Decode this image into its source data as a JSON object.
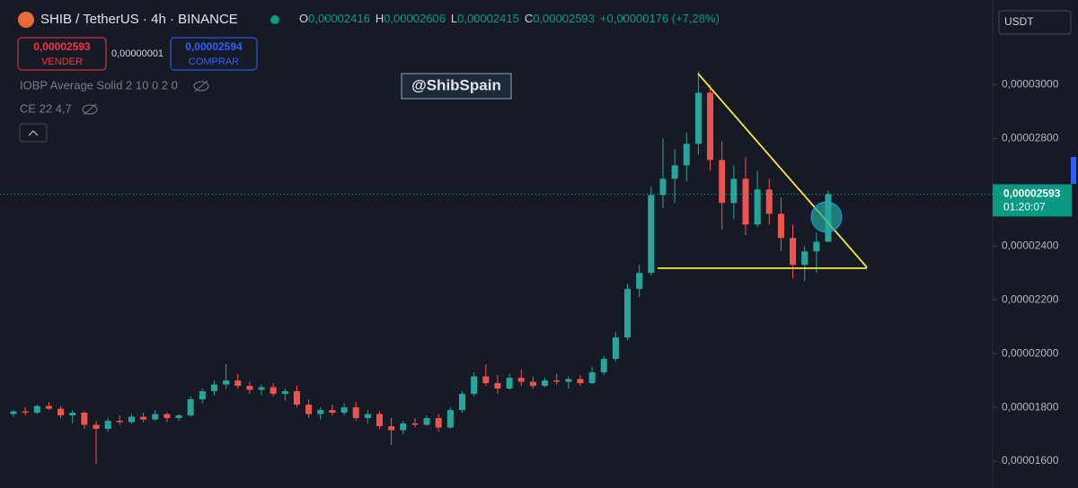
{
  "header": {
    "title": "SHIB / TetherUS · 4h · BINANCE",
    "ohlc": [
      {
        "key": "O",
        "value": "0,00002416"
      },
      {
        "key": "H",
        "value": "0,00002606"
      },
      {
        "key": "L",
        "value": "0,00002415"
      },
      {
        "key": "C",
        "value": "0,00002593"
      }
    ],
    "change": "+0,00000176 (+7,28%)",
    "sell": {
      "price": "0,00002593",
      "label": "VENDER"
    },
    "spread": "0,00000001",
    "buy": {
      "price": "0,00002594",
      "label": "COMPRAR"
    },
    "indicators": [
      "IOBP Average Solid 2 10 0 2 0",
      "CE 22 4,7"
    ],
    "currency": "USDT"
  },
  "watermark": "@ShibSpain",
  "last_price": {
    "label": "0,00002593",
    "countdown": "01:20:07"
  },
  "chart_data": {
    "type": "candlestick",
    "up_color": "#26a69a",
    "down_color": "#ef5350",
    "ylim": [
      1.5e-05,
      3.315e-05
    ],
    "yticks": [
      {
        "value": 3e-05,
        "label": "0,00003000"
      },
      {
        "value": 2.8e-05,
        "label": "0,00002800"
      },
      {
        "value": 2.4e-05,
        "label": "0,00002400"
      },
      {
        "value": 2.2e-05,
        "label": "0,00002200"
      },
      {
        "value": 2e-05,
        "label": "0,00002000"
      },
      {
        "value": 1.8e-05,
        "label": "0,00001800"
      },
      {
        "value": 1.6e-05,
        "label": "0,00001600"
      }
    ],
    "open": [
      1.775e-05,
      1.785e-05,
      1.78e-05,
      1.805e-05,
      1.795e-05,
      1.77e-05,
      1.78e-05,
      1.735e-05,
      1.72e-05,
      1.75e-05,
      1.745e-05,
      1.765e-05,
      1.755e-05,
      1.775e-05,
      1.76e-05,
      1.77e-05,
      1.83e-05,
      1.86e-05,
      1.885e-05,
      1.9e-05,
      1.88e-05,
      1.865e-05,
      1.875e-05,
      1.85e-05,
      1.86e-05,
      1.81e-05,
      1.775e-05,
      1.79e-05,
      1.78e-05,
      1.8e-05,
      1.76e-05,
      1.775e-05,
      1.73e-05,
      1.715e-05,
      1.74e-05,
      1.735e-05,
      1.76e-05,
      1.725e-05,
      1.79e-05,
      1.85e-05,
      1.915e-05,
      1.89e-05,
      1.87e-05,
      1.91e-05,
      1.895e-05,
      1.88e-05,
      1.9e-05,
      1.895e-05,
      1.905e-05,
      1.89e-05,
      1.93e-05,
      1.98e-05,
      2.06e-05,
      2.24e-05,
      2.3e-05,
      2.59e-05,
      2.65e-05,
      2.7e-05,
      2.78e-05,
      2.97e-05,
      2.72e-05,
      2.56e-05,
      2.65e-05,
      2.48e-05,
      2.61e-05,
      2.52e-05,
      2.43e-05,
      2.33e-05,
      2.38e-05,
      2.416e-05
    ],
    "high": [
      1.79e-05,
      1.8e-05,
      1.81e-05,
      1.82e-05,
      1.805e-05,
      1.79e-05,
      1.785e-05,
      1.75e-05,
      1.76e-05,
      1.77e-05,
      1.775e-05,
      1.78e-05,
      1.79e-05,
      1.78e-05,
      1.775e-05,
      1.84e-05,
      1.87e-05,
      1.9e-05,
      1.96e-05,
      1.925e-05,
      1.895e-05,
      1.885e-05,
      1.89e-05,
      1.87e-05,
      1.88e-05,
      1.83e-05,
      1.8e-05,
      1.81e-05,
      1.815e-05,
      1.82e-05,
      1.79e-05,
      1.785e-05,
      1.76e-05,
      1.75e-05,
      1.76e-05,
      1.77e-05,
      1.775e-05,
      1.8e-05,
      1.86e-05,
      1.93e-05,
      1.96e-05,
      1.92e-05,
      1.925e-05,
      1.94e-05,
      1.915e-05,
      1.91e-05,
      1.925e-05,
      1.915e-05,
      1.92e-05,
      1.95e-05,
      1.99e-05,
      2.08e-05,
      2.26e-05,
      2.33e-05,
      2.62e-05,
      2.8e-05,
      2.76e-05,
      2.82e-05,
      3.05e-05,
      3e-05,
      2.79e-05,
      2.7e-05,
      2.73e-05,
      2.68e-05,
      2.65e-05,
      2.58e-05,
      2.48e-05,
      2.4e-05,
      2.45e-05,
      2.606e-05
    ],
    "low": [
      1.765e-05,
      1.77e-05,
      1.775e-05,
      1.79e-05,
      1.76e-05,
      1.74e-05,
      1.72e-05,
      1.59e-05,
      1.71e-05,
      1.735e-05,
      1.74e-05,
      1.745e-05,
      1.75e-05,
      1.745e-05,
      1.75e-05,
      1.765e-05,
      1.815e-05,
      1.845e-05,
      1.87e-05,
      1.87e-05,
      1.85e-05,
      1.845e-05,
      1.84e-05,
      1.825e-05,
      1.8e-05,
      1.76e-05,
      1.755e-05,
      1.77e-05,
      1.77e-05,
      1.75e-05,
      1.74e-05,
      1.72e-05,
      1.66e-05,
      1.7e-05,
      1.725e-05,
      1.73e-05,
      1.71e-05,
      1.72e-05,
      1.78e-05,
      1.84e-05,
      1.88e-05,
      1.85e-05,
      1.865e-05,
      1.88e-05,
      1.87e-05,
      1.875e-05,
      1.885e-05,
      1.87e-05,
      1.88e-05,
      1.885e-05,
      1.92e-05,
      1.97e-05,
      2.05e-05,
      2.21e-05,
      2.29e-05,
      2.54e-05,
      2.56e-05,
      2.64e-05,
      2.74e-05,
      2.68e-05,
      2.46e-05,
      2.5e-05,
      2.44e-05,
      2.47e-05,
      2.48e-05,
      2.38e-05,
      2.28e-05,
      2.27e-05,
      2.3e-05,
      2.415e-05
    ],
    "close": [
      1.785e-05,
      1.78e-05,
      1.805e-05,
      1.795e-05,
      1.77e-05,
      1.78e-05,
      1.735e-05,
      1.72e-05,
      1.75e-05,
      1.745e-05,
      1.765e-05,
      1.755e-05,
      1.775e-05,
      1.76e-05,
      1.77e-05,
      1.83e-05,
      1.86e-05,
      1.885e-05,
      1.9e-05,
      1.88e-05,
      1.865e-05,
      1.875e-05,
      1.85e-05,
      1.86e-05,
      1.81e-05,
      1.775e-05,
      1.79e-05,
      1.78e-05,
      1.8e-05,
      1.76e-05,
      1.775e-05,
      1.73e-05,
      1.715e-05,
      1.74e-05,
      1.735e-05,
      1.76e-05,
      1.725e-05,
      1.79e-05,
      1.85e-05,
      1.915e-05,
      1.89e-05,
      1.87e-05,
      1.91e-05,
      1.895e-05,
      1.88e-05,
      1.9e-05,
      1.895e-05,
      1.905e-05,
      1.89e-05,
      1.93e-05,
      1.98e-05,
      2.06e-05,
      2.24e-05,
      2.3e-05,
      2.59e-05,
      2.65e-05,
      2.7e-05,
      2.78e-05,
      2.97e-05,
      2.72e-05,
      2.56e-05,
      2.65e-05,
      2.48e-05,
      2.61e-05,
      2.52e-05,
      2.43e-05,
      2.33e-05,
      2.38e-05,
      2.416e-05,
      2.593e-05
    ]
  }
}
